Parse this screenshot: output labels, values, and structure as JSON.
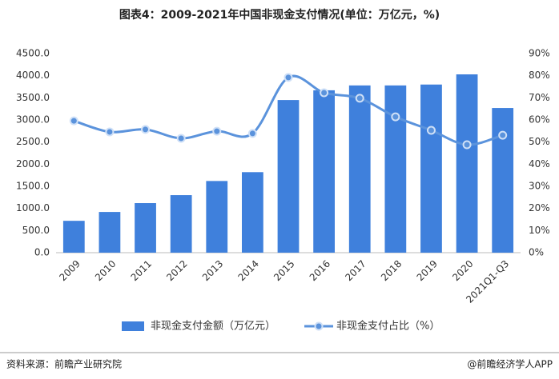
{
  "chart_data": {
    "type": "bar-line",
    "title": "图表4：2009-2021年中国非现金支付情况(单位：万亿元，%)",
    "categories": [
      "2009",
      "2010",
      "2011",
      "2012",
      "2013",
      "2014",
      "2015",
      "2016",
      "2017",
      "2018",
      "2019",
      "2020",
      "2021Q1-Q3"
    ],
    "series": [
      {
        "name": "非现金支付金额（万亿元）",
        "type": "bar",
        "color": "#3f80dc",
        "values": [
          720,
          920,
          1120,
          1300,
          1620,
          1820,
          3450,
          3670,
          3780,
          3780,
          3800,
          4030,
          3270
        ]
      },
      {
        "name": "非现金支付占比（%）",
        "type": "line",
        "axis": "y2",
        "color": "#5b93dc",
        "values": [
          59.6,
          54.6,
          55.7,
          51.7,
          54.9,
          53.9,
          79.2,
          72.3,
          69.8,
          61.4,
          55.3,
          48.8,
          53.1
        ]
      }
    ],
    "ylim": [
      0,
      4500
    ],
    "yticks": [
      {
        "value": 0,
        "label": "0.0"
      },
      {
        "value": 500,
        "label": "500.0"
      },
      {
        "value": 1000,
        "label": "1000.0"
      },
      {
        "value": 1500,
        "label": "1500.0"
      },
      {
        "value": 2000,
        "label": "2000.0"
      },
      {
        "value": 2500,
        "label": "2500.0"
      },
      {
        "value": 3000,
        "label": "3000.0"
      },
      {
        "value": 3500,
        "label": "3500.0"
      },
      {
        "value": 4000,
        "label": "4000.0"
      },
      {
        "value": 4500,
        "label": "4500.0"
      }
    ],
    "y2lim": [
      0,
      90
    ],
    "y2ticks": [
      {
        "value": 0,
        "label": "0%"
      },
      {
        "value": 10,
        "label": "10%"
      },
      {
        "value": 20,
        "label": "20%"
      },
      {
        "value": 30,
        "label": "30%"
      },
      {
        "value": 40,
        "label": "40%"
      },
      {
        "value": 50,
        "label": "50%"
      },
      {
        "value": 60,
        "label": "60%"
      },
      {
        "value": 70,
        "label": "70%"
      },
      {
        "value": 80,
        "label": "80%"
      },
      {
        "value": 90,
        "label": "90%"
      }
    ],
    "legend": "bottom"
  },
  "footer": {
    "source": "资料来源：前瞻产业研究院",
    "credit": "@前瞻经济学人APP"
  }
}
